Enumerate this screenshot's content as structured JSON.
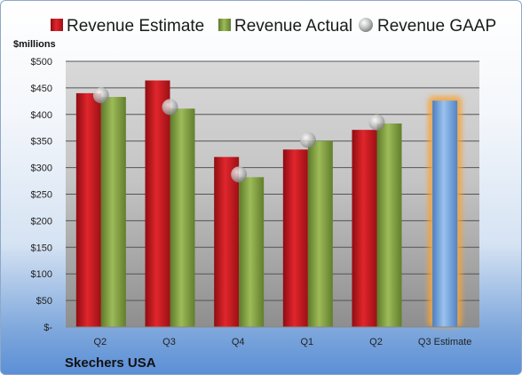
{
  "chart_data": {
    "type": "bar",
    "ylabel": "$millions",
    "ylim": [
      0,
      500
    ],
    "yticks": [
      "$-",
      "$50",
      "$100",
      "$150",
      "$200",
      "$250",
      "$300",
      "$350",
      "$400",
      "$450",
      "$500"
    ],
    "categories": [
      "Q2",
      "Q3",
      "Q4",
      "Q1",
      "Q2",
      "Q3 Estimate"
    ],
    "series": [
      {
        "name": "Revenue Estimate",
        "kind": "bar",
        "color": "#c0161c",
        "values": [
          440,
          464,
          320,
          334,
          371,
          null
        ]
      },
      {
        "name": "Revenue Actual",
        "kind": "bar",
        "color": "#7e9c3e",
        "values": [
          433,
          411,
          282,
          350,
          383,
          null
        ]
      },
      {
        "name": "Revenue GAAP",
        "kind": "marker",
        "color": "#b8b8b8",
        "values": [
          436,
          414,
          287,
          352,
          385,
          null
        ]
      }
    ],
    "forecast": {
      "category": "Q3 Estimate",
      "value": 426,
      "color": "#6e9fd8",
      "glow": "#f5a43a"
    },
    "legend_position": "top",
    "grid": true,
    "footer": "Skechers USA"
  }
}
